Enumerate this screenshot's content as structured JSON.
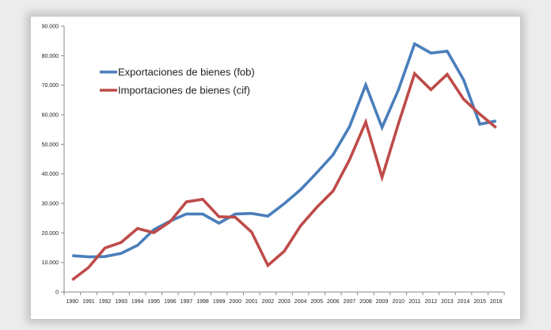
{
  "chart_data": {
    "type": "line",
    "title": "",
    "xlabel": "",
    "ylabel": "",
    "x": [
      "1990",
      "1991",
      "1992",
      "1993",
      "1994",
      "1995",
      "1996",
      "1997",
      "1998",
      "1999",
      "2000",
      "2001",
      "2002",
      "2003",
      "2004",
      "2005",
      "2006",
      "2007",
      "2008",
      "2009",
      "2010",
      "2011",
      "2012",
      "2013",
      "2014",
      "2015",
      "2016"
    ],
    "ylim": [
      0,
      90000
    ],
    "yticks": [
      "0",
      "10.000",
      "20.000",
      "30.000",
      "40.000",
      "50.000",
      "60.000",
      "70.000",
      "80.000",
      "90.000"
    ],
    "grid": false,
    "legend_position": "top-left",
    "series": [
      {
        "name": "Exportaciones de bienes (fob)",
        "color": "#4a7ebb",
        "values": [
          12300,
          11900,
          12000,
          13100,
          15800,
          21100,
          24000,
          26400,
          26400,
          23300,
          26400,
          26600,
          25700,
          29900,
          34600,
          40400,
          46500,
          55900,
          70100,
          55700,
          68300,
          84000,
          80900,
          81500,
          71900,
          56800,
          57900
        ]
      },
      {
        "name": "Importaciones de bienes (cif)",
        "color": "#be4b48",
        "values": [
          4100,
          8300,
          14900,
          16800,
          21500,
          20100,
          23800,
          30500,
          31400,
          25500,
          25300,
          20300,
          9000,
          13800,
          22400,
          28700,
          34200,
          44700,
          57500,
          38800,
          56800,
          73900,
          68500,
          73700,
          65300,
          60200,
          55600
        ]
      }
    ]
  }
}
